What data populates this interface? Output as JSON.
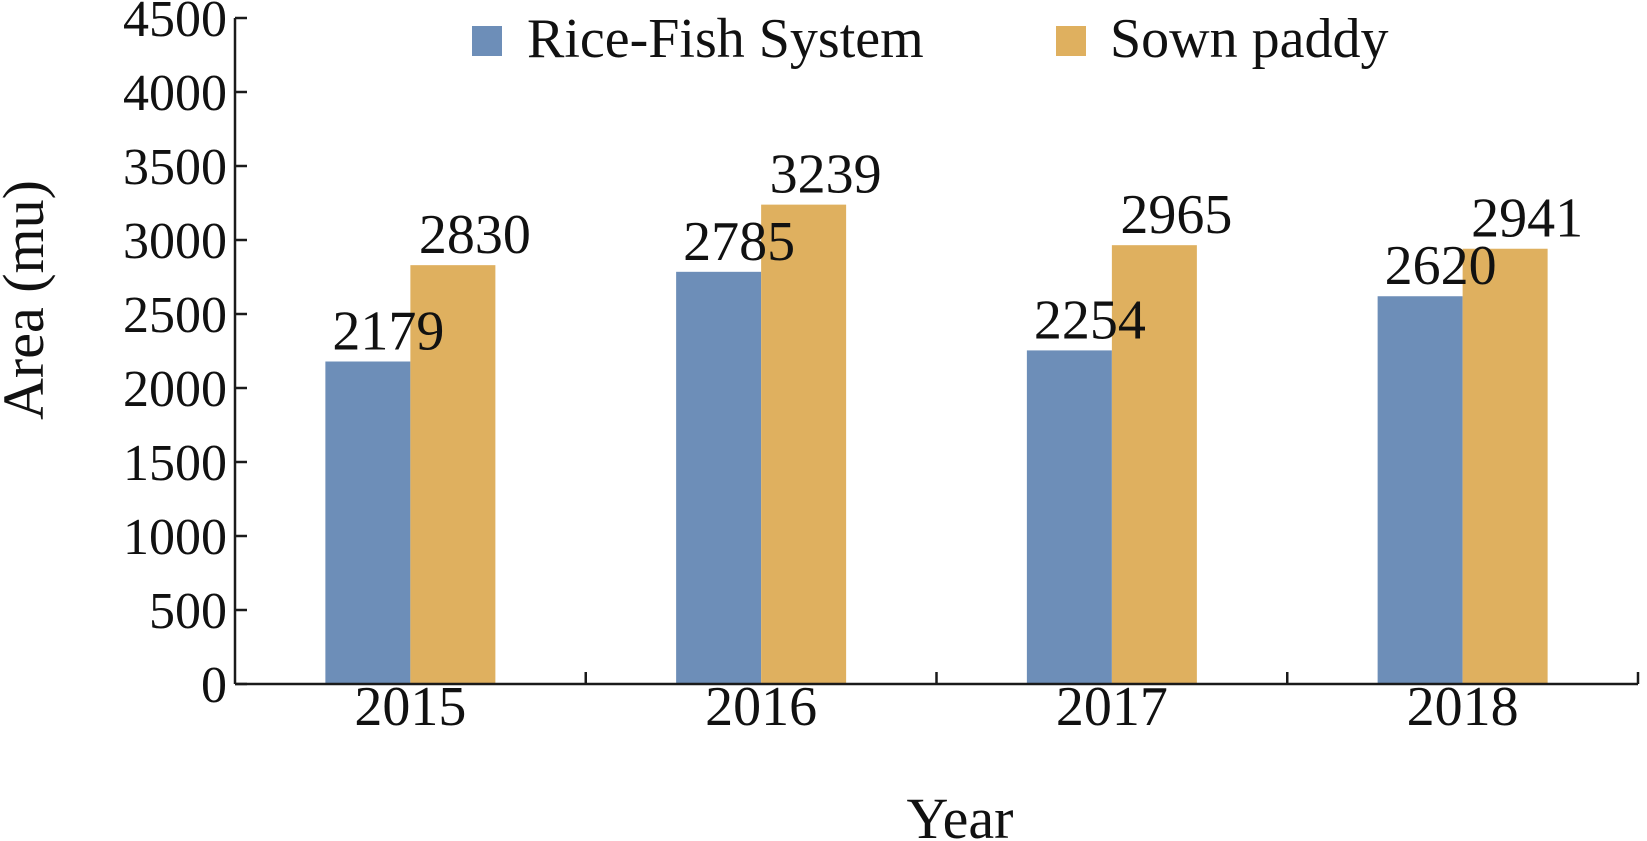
{
  "chart_data": {
    "type": "bar",
    "title": "",
    "xlabel": "Year",
    "ylabel": "Area (mu)",
    "categories": [
      "2015",
      "2016",
      "2017",
      "2018"
    ],
    "series": [
      {
        "name": "Rice-Fish System",
        "values": [
          2179,
          2785,
          2254,
          2620
        ],
        "color": "#6d8eb8"
      },
      {
        "name": "Sown paddy",
        "values": [
          2830,
          3239,
          2965,
          2941
        ],
        "color": "#dfb05f"
      }
    ],
    "ylim": [
      0,
      4500
    ],
    "yticks": [
      "0",
      "500",
      "1000",
      "1500",
      "2000",
      "2500",
      "3000",
      "3500",
      "4000",
      "4500"
    ],
    "grid": false,
    "legend_position": "top"
  }
}
